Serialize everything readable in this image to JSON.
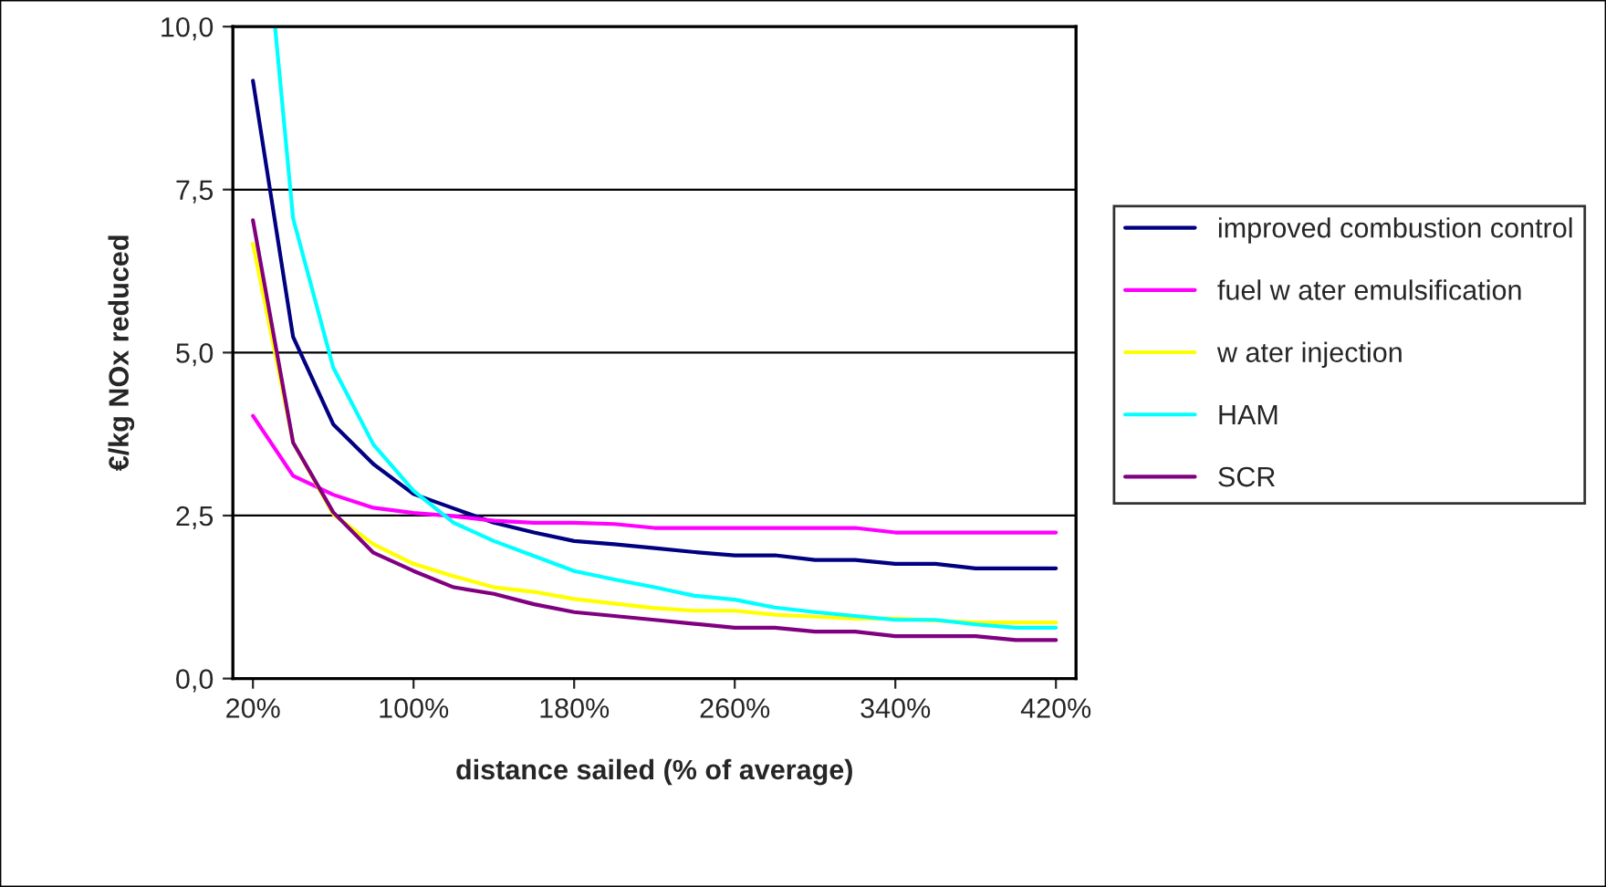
{
  "chart_data": {
    "type": "line",
    "xlabel": "distance sailed (% of average)",
    "ylabel": "€/kg NOx reduced",
    "x": [
      20,
      40,
      60,
      80,
      100,
      120,
      140,
      160,
      180,
      200,
      220,
      240,
      260,
      280,
      300,
      320,
      340,
      360,
      380,
      400,
      420
    ],
    "xlim": [
      10,
      430
    ],
    "xticks": [
      {
        "value": 20,
        "label": "20%"
      },
      {
        "value": 100,
        "label": "100%"
      },
      {
        "value": 180,
        "label": "180%"
      },
      {
        "value": 260,
        "label": "260%"
      },
      {
        "value": 340,
        "label": "340%"
      },
      {
        "value": 420,
        "label": "420%"
      }
    ],
    "ylim": [
      0,
      10
    ],
    "yticks": [
      {
        "value": 0,
        "label": "0,0"
      },
      {
        "value": 2.5,
        "label": "2,5"
      },
      {
        "value": 5,
        "label": "5,0"
      },
      {
        "value": 7.5,
        "label": "7,5"
      },
      {
        "value": 10,
        "label": "10,0"
      }
    ],
    "grid": "y",
    "legend": "right",
    "marker": "none",
    "line_style": "solid",
    "series": [
      {
        "name": "improved combustion control",
        "color": "#000080",
        "values": [
          9.17,
          5.24,
          3.9,
          3.29,
          2.83,
          2.61,
          2.39,
          2.24,
          2.11,
          2.06,
          2.0,
          1.94,
          1.89,
          1.89,
          1.82,
          1.82,
          1.76,
          1.76,
          1.69,
          1.69,
          1.69
        ]
      },
      {
        "name": "fuel w ater emulsification",
        "color": "#ff00ff",
        "values": [
          4.03,
          3.11,
          2.82,
          2.62,
          2.54,
          2.49,
          2.42,
          2.39,
          2.39,
          2.37,
          2.31,
          2.31,
          2.31,
          2.31,
          2.31,
          2.31,
          2.24,
          2.24,
          2.24,
          2.24,
          2.24
        ]
      },
      {
        "name": "w ater injection",
        "color": "#ffff00",
        "values": [
          6.67,
          3.62,
          2.52,
          2.06,
          1.76,
          1.57,
          1.4,
          1.33,
          1.22,
          1.15,
          1.08,
          1.04,
          1.04,
          0.98,
          0.95,
          0.92,
          0.92,
          0.89,
          0.86,
          0.86,
          0.86
        ]
      },
      {
        "name": "HAM",
        "color": "#00ffff",
        "x": [
          31,
          40,
          60,
          80,
          100,
          120,
          140,
          160,
          180,
          200,
          220,
          240,
          260,
          280,
          300,
          320,
          340,
          360,
          380,
          400,
          420
        ],
        "values": [
          10.0,
          7.06,
          4.77,
          3.59,
          2.88,
          2.39,
          2.11,
          1.88,
          1.65,
          1.52,
          1.4,
          1.27,
          1.21,
          1.09,
          1.02,
          0.96,
          0.9,
          0.9,
          0.83,
          0.78,
          0.78
        ]
      },
      {
        "name": "SCR",
        "color": "#800080",
        "values": [
          7.03,
          3.62,
          2.55,
          1.93,
          1.65,
          1.4,
          1.3,
          1.14,
          1.02,
          0.96,
          0.9,
          0.84,
          0.78,
          0.78,
          0.72,
          0.72,
          0.65,
          0.65,
          0.65,
          0.59,
          0.59
        ]
      }
    ]
  }
}
